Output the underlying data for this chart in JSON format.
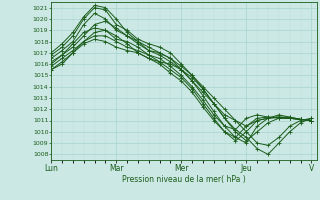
{
  "xlabel": "Pression niveau de la mer( hPa )",
  "x_ticks_labels": [
    "Lun",
    "Mar",
    "Mer",
    "Jeu",
    "V"
  ],
  "x_ticks_pos": [
    0,
    24,
    48,
    72,
    96
  ],
  "ylim": [
    1007.5,
    1021.5
  ],
  "yticks": [
    1008,
    1009,
    1010,
    1011,
    1012,
    1013,
    1014,
    1015,
    1016,
    1017,
    1018,
    1019,
    1020,
    1021
  ],
  "bg_color": "#cce8e4",
  "grid_color_major": "#a8d4ce",
  "grid_color_minor": "#b8deda",
  "line_color": "#1a5c1a",
  "line_width": 0.7,
  "marker": "+",
  "marker_size": 2.5,
  "marker_ew": 0.6,
  "lines": [
    [
      0,
      1016.5,
      4,
      1017.2,
      8,
      1018.0,
      12,
      1019.5,
      16,
      1020.5,
      20,
      1020.0,
      24,
      1019.0,
      28,
      1018.5,
      32,
      1018.0,
      36,
      1017.5,
      40,
      1017.0,
      44,
      1016.5,
      48,
      1015.5,
      52,
      1014.5,
      56,
      1013.5,
      60,
      1012.5,
      64,
      1011.5,
      68,
      1011.0,
      72,
      1010.5,
      76,
      1011.0,
      80,
      1011.2,
      84,
      1011.3,
      88,
      1011.2,
      92,
      1011.1,
      96,
      1011.0
    ],
    [
      0,
      1016.8,
      4,
      1017.5,
      8,
      1018.5,
      12,
      1020.0,
      16,
      1021.0,
      20,
      1020.8,
      24,
      1019.5,
      28,
      1019.0,
      32,
      1018.2,
      36,
      1017.8,
      40,
      1017.5,
      44,
      1017.0,
      48,
      1016.0,
      52,
      1015.0,
      56,
      1013.8,
      60,
      1012.5,
      64,
      1011.2,
      68,
      1010.2,
      72,
      1009.5,
      76,
      1008.5,
      80,
      1008.0,
      84,
      1009.0,
      88,
      1010.0,
      92,
      1010.8,
      96,
      1011.2
    ],
    [
      0,
      1017.0,
      4,
      1017.8,
      8,
      1018.8,
      12,
      1020.2,
      16,
      1021.2,
      20,
      1021.0,
      24,
      1020.0,
      28,
      1018.8,
      32,
      1018.0,
      36,
      1017.2,
      40,
      1017.0,
      44,
      1016.5,
      48,
      1015.8,
      52,
      1015.0,
      56,
      1014.0,
      60,
      1013.0,
      64,
      1012.0,
      68,
      1011.0,
      72,
      1010.0,
      76,
      1009.0,
      80,
      1008.8,
      84,
      1009.5,
      88,
      1010.5,
      92,
      1011.0,
      96,
      1011.2
    ],
    [
      0,
      1016.2,
      4,
      1016.8,
      8,
      1017.5,
      12,
      1018.5,
      16,
      1019.5,
      20,
      1019.8,
      24,
      1019.2,
      28,
      1018.5,
      32,
      1017.8,
      36,
      1017.2,
      40,
      1016.8,
      44,
      1016.2,
      48,
      1015.5,
      52,
      1014.5,
      56,
      1013.2,
      60,
      1011.8,
      64,
      1010.5,
      68,
      1009.5,
      72,
      1009.0,
      76,
      1010.5,
      80,
      1011.2,
      84,
      1011.5,
      88,
      1011.3,
      92,
      1011.1,
      96,
      1011.0
    ],
    [
      0,
      1015.5,
      4,
      1016.0,
      8,
      1017.0,
      12,
      1018.0,
      16,
      1018.8,
      20,
      1019.0,
      24,
      1018.5,
      28,
      1017.8,
      32,
      1017.0,
      36,
      1016.5,
      40,
      1016.2,
      44,
      1016.0,
      48,
      1015.5,
      52,
      1014.8,
      56,
      1013.8,
      60,
      1012.5,
      64,
      1011.2,
      68,
      1010.0,
      72,
      1009.2,
      76,
      1010.0,
      80,
      1010.8,
      84,
      1011.2,
      88,
      1011.2,
      92,
      1011.1,
      96,
      1011.0
    ],
    [
      0,
      1016.0,
      4,
      1016.8,
      8,
      1017.8,
      12,
      1018.8,
      16,
      1019.2,
      20,
      1019.0,
      24,
      1018.2,
      28,
      1018.0,
      32,
      1017.5,
      36,
      1016.8,
      40,
      1016.2,
      44,
      1015.5,
      48,
      1014.8,
      52,
      1013.8,
      56,
      1012.5,
      60,
      1011.2,
      64,
      1010.0,
      68,
      1009.2,
      72,
      1010.0,
      76,
      1011.0,
      80,
      1011.2,
      84,
      1011.3,
      88,
      1011.3,
      92,
      1011.1,
      96,
      1011.0
    ],
    [
      0,
      1015.8,
      4,
      1016.5,
      8,
      1017.2,
      12,
      1018.0,
      16,
      1018.5,
      20,
      1018.5,
      24,
      1018.0,
      28,
      1017.5,
      32,
      1017.2,
      36,
      1016.8,
      40,
      1016.5,
      44,
      1015.8,
      48,
      1015.0,
      52,
      1014.0,
      56,
      1012.8,
      60,
      1011.5,
      64,
      1010.5,
      68,
      1010.2,
      72,
      1011.2,
      76,
      1011.5,
      80,
      1011.3,
      84,
      1011.2,
      88,
      1011.2,
      92,
      1011.1,
      96,
      1011.0
    ],
    [
      0,
      1015.5,
      4,
      1016.2,
      8,
      1017.0,
      12,
      1017.8,
      16,
      1018.2,
      20,
      1018.0,
      24,
      1017.5,
      28,
      1017.2,
      32,
      1017.0,
      36,
      1016.5,
      40,
      1016.0,
      44,
      1015.2,
      48,
      1014.5,
      52,
      1013.5,
      56,
      1012.2,
      60,
      1011.0,
      64,
      1010.0,
      68,
      1009.5,
      72,
      1010.5,
      76,
      1011.2,
      80,
      1011.3,
      84,
      1011.3,
      88,
      1011.2,
      92,
      1011.1,
      96,
      1011.0
    ]
  ]
}
